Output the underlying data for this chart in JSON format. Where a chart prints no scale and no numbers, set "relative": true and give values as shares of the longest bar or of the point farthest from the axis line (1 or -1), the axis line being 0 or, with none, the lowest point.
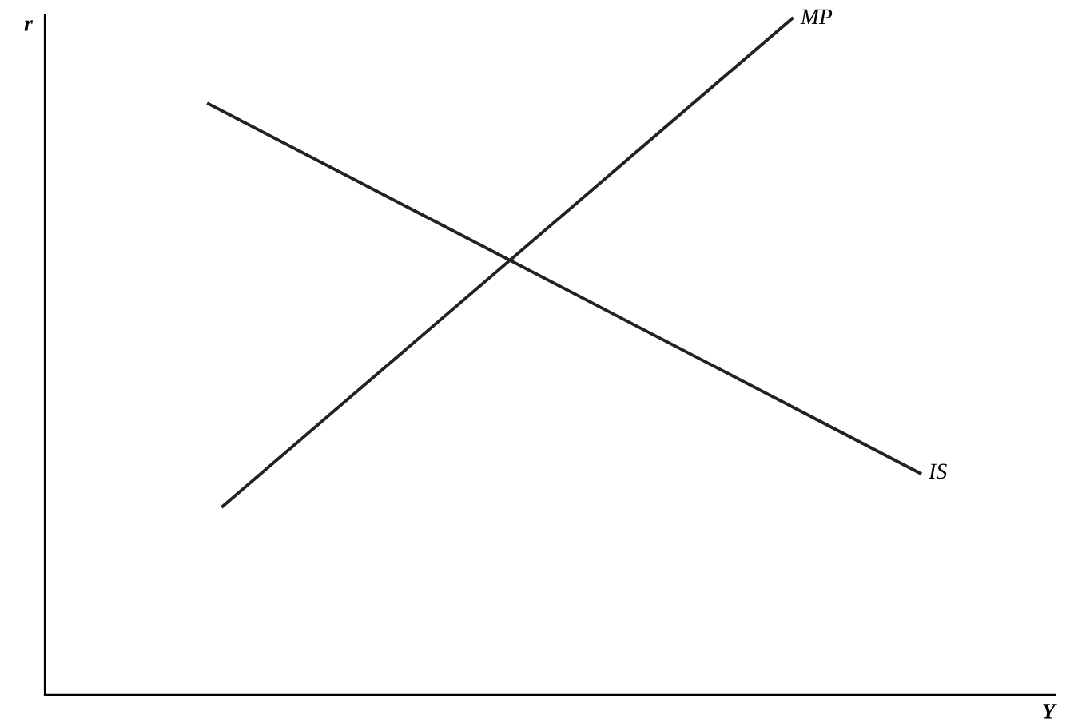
{
  "chart_data": {
    "type": "line",
    "relative": true,
    "xlabel": "Y",
    "ylabel": "r",
    "tick_labels": false,
    "marker": "none",
    "line_style": "solid",
    "categories": [
      null,
      null,
      null,
      null,
      null,
      null,
      null,
      null,
      null,
      null,
      null,
      null,
      null,
      null,
      null,
      null,
      null,
      null,
      null,
      null,
      null,
      null,
      null,
      null,
      null,
      null,
      null,
      null,
      null,
      null,
      null,
      null,
      null,
      null,
      null,
      null,
      null,
      null,
      null,
      null,
      null,
      null,
      null,
      null,
      null,
      null,
      null,
      null,
      null,
      null,
      null,
      null,
      null,
      null,
      null,
      null,
      null,
      null,
      null,
      null,
      null,
      null,
      null,
      null,
      null,
      null,
      null,
      null,
      null,
      null,
      null
    ],
    "series": [
      {
        "name": "IS",
        "color": "#222222",
        "values": [
          null,
          null,
          null,
          null,
          null,
          null,
          null,
          null,
          null,
          null,
          null,
          0.874,
          null,
          null,
          null,
          null,
          null,
          null,
          null,
          null,
          null,
          null,
          null,
          null,
          null,
          null,
          null,
          null,
          null,
          null,
          null,
          null,
          null,
          null,
          null,
          null,
          null,
          null,
          null,
          null,
          null,
          null,
          null,
          null,
          null,
          null,
          null,
          null,
          null,
          null,
          null,
          null,
          null,
          null,
          null,
          null,
          null,
          null,
          null,
          null,
          null,
          0.328,
          null,
          null,
          null,
          null,
          null,
          null,
          null,
          null,
          null
        ]
      },
      {
        "name": "MP",
        "color": "#222222",
        "values": [
          null,
          null,
          null,
          null,
          null,
          null,
          null,
          null,
          null,
          null,
          null,
          null,
          0.279,
          null,
          null,
          null,
          null,
          null,
          null,
          null,
          null,
          null,
          null,
          null,
          null,
          null,
          null,
          null,
          null,
          null,
          null,
          null,
          null,
          null,
          null,
          null,
          null,
          null,
          null,
          null,
          null,
          null,
          null,
          null,
          null,
          null,
          null,
          null,
          null,
          null,
          null,
          null,
          1,
          null,
          null,
          null,
          null,
          null,
          null,
          null,
          null,
          null,
          null,
          null,
          null,
          null,
          null,
          null,
          null,
          null,
          null
        ]
      }
    ]
  }
}
